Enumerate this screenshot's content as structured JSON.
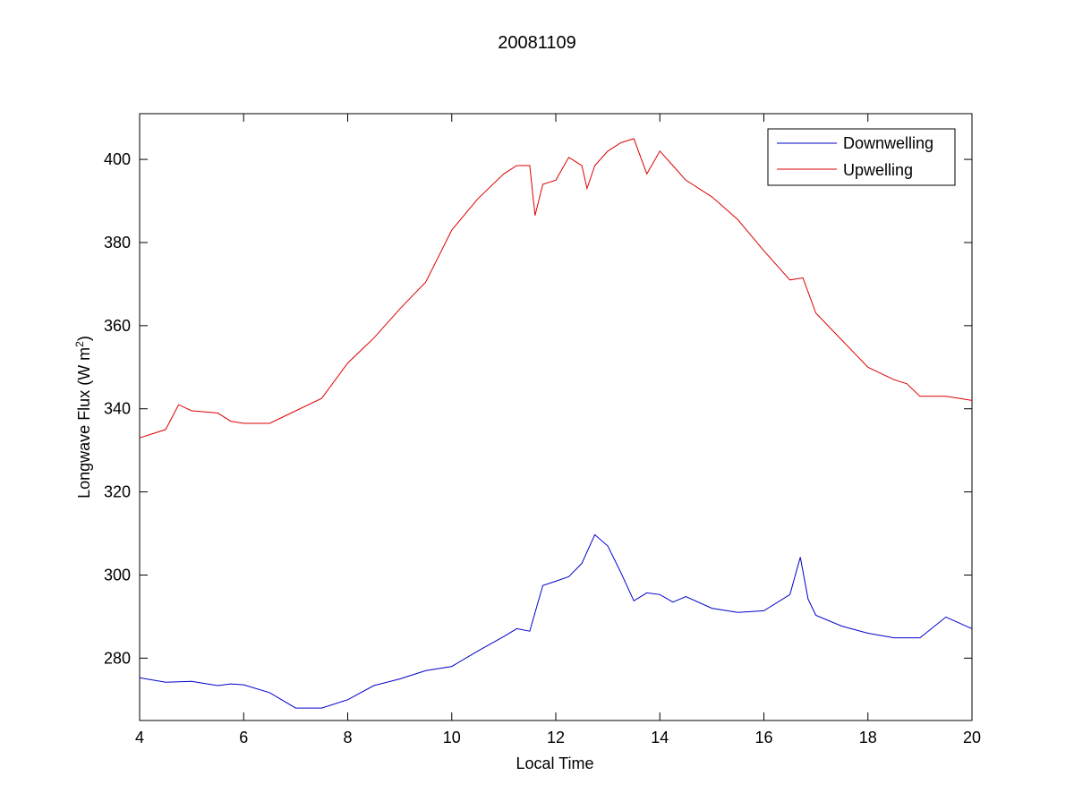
{
  "chart_data": {
    "type": "line",
    "title": "20081109",
    "xlabel": "Local Time",
    "ylabel_main": "Longwave Flux (W m",
    "ylabel_sup": "2",
    "ylabel_close": ")",
    "xlim": [
      4,
      20
    ],
    "ylim": [
      265,
      411
    ],
    "xticks": [
      4,
      6,
      8,
      10,
      12,
      14,
      16,
      18,
      20
    ],
    "yticks": [
      280,
      300,
      320,
      340,
      360,
      380,
      400
    ],
    "grid": false,
    "legend_position": "top-right",
    "series": [
      {
        "name": "Downwelling",
        "color": "#0000cc",
        "x": [
          4,
          4.5,
          5,
          5.5,
          5.75,
          6,
          6.5,
          7,
          7.5,
          8,
          8.5,
          9,
          9.5,
          10,
          10.5,
          11,
          11.25,
          11.5,
          11.75,
          12,
          12.25,
          12.5,
          12.75,
          13,
          13.25,
          13.5,
          13.75,
          14,
          14.25,
          14.5,
          15,
          15.5,
          16,
          16.5,
          16.7,
          16.85,
          17,
          17.5,
          18,
          18.5,
          19,
          19.5,
          20
        ],
        "y": [
          275.3,
          274.2,
          274.4,
          273.4,
          273.8,
          273.6,
          271.7,
          268,
          268,
          270,
          273.4,
          275,
          277,
          278,
          281.7,
          285.2,
          287.1,
          286.5,
          297.5,
          298.5,
          299.6,
          302.8,
          309.7,
          307,
          300.6,
          293.8,
          295.7,
          295.3,
          293.5,
          294.8,
          292,
          291,
          291.4,
          295.3,
          304.3,
          294.2,
          290.3,
          287.7,
          286,
          284.9,
          284.9,
          289.9,
          287.1
        ]
      },
      {
        "name": "Upwelling",
        "color": "#dd0000",
        "x": [
          4,
          4.25,
          4.5,
          4.75,
          5,
          5.5,
          5.75,
          6,
          6.5,
          6.75,
          7,
          7.5,
          8,
          8.5,
          9,
          9.5,
          10,
          10.5,
          11,
          11.25,
          11.5,
          11.6,
          11.75,
          12,
          12.25,
          12.5,
          12.6,
          12.75,
          13,
          13.25,
          13.5,
          13.75,
          14,
          14.25,
          14.5,
          15,
          15.5,
          16,
          16.5,
          16.75,
          17,
          17.5,
          18,
          18.5,
          18.75,
          19,
          19.5,
          20
        ],
        "y": [
          333,
          334,
          335,
          341,
          339.5,
          339,
          337,
          336.5,
          336.5,
          338,
          339.5,
          342.5,
          351,
          357,
          364,
          370.5,
          383,
          390.5,
          396.5,
          398.5,
          398.5,
          386.5,
          394,
          395,
          400.5,
          398.5,
          393,
          398.5,
          402,
          404,
          405,
          396.5,
          402,
          398.5,
          395,
          391,
          385.5,
          378,
          371,
          371.5,
          363,
          356.5,
          350,
          347,
          346,
          343,
          343,
          342
        ]
      }
    ]
  }
}
